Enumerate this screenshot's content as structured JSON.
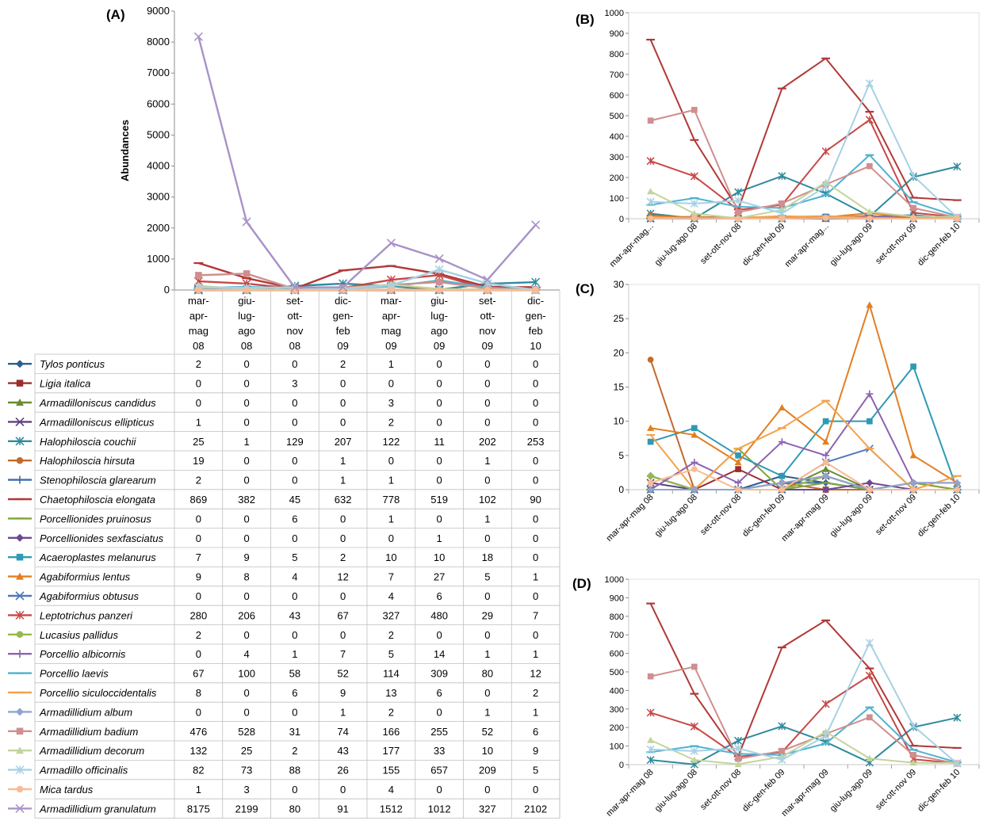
{
  "colors": [
    "#2E5E8E",
    "#9B2D2D",
    "#6A8C2E",
    "#5E3F7F",
    "#2F8B9C",
    "#C4692D",
    "#3C6BA8",
    "#B23838",
    "#7FA43C",
    "#6E4796",
    "#2F9AB4",
    "#E27F22",
    "#4F79B8",
    "#C84848",
    "#97B94A",
    "#8C63B0",
    "#4FB2CF",
    "#F5A24A",
    "#8FA4CF",
    "#D08E8E",
    "#C3D49C",
    "#A7D1E3",
    "#F9BB93",
    "#A892C7"
  ],
  "markers": [
    "diamond",
    "square",
    "triangle",
    "x",
    "asterisk",
    "circle",
    "plus",
    "dash",
    "dash",
    "diamond",
    "square",
    "triangle",
    "x",
    "asterisk",
    "circle",
    "plus",
    "dash",
    "dash",
    "diamond",
    "square",
    "triangle",
    "asterisk",
    "circle",
    "x"
  ],
  "chart_data": [
    {
      "panel": "(A)",
      "type": "line",
      "ylabel": "Abundances",
      "ylim": [
        0,
        9000
      ],
      "yticks": [
        "0",
        "1000",
        "2000",
        "3000",
        "4000",
        "5000",
        "6000",
        "7000",
        "8000",
        "9000"
      ],
      "categories": [
        [
          "mar-",
          "apr-",
          "mag",
          "08"
        ],
        [
          "giu-",
          "lug-",
          "ago",
          "08"
        ],
        [
          "set-",
          "ott-",
          "nov",
          "08"
        ],
        [
          "dic-",
          "gen-",
          "feb",
          "09"
        ],
        [
          "mar-",
          "apr-",
          "mag",
          "09"
        ],
        [
          "giu-",
          "lug-",
          "ago",
          "09"
        ],
        [
          "set-",
          "ott-",
          "nov",
          "09"
        ],
        [
          "dic-",
          "gen-",
          "feb",
          "10"
        ]
      ],
      "legend_placement": "data table below",
      "series": [
        {
          "name": "Tylos ponticus",
          "values": [
            2,
            0,
            0,
            2,
            1,
            0,
            0,
            0
          ]
        },
        {
          "name": "Ligia italica",
          "values": [
            0,
            0,
            3,
            0,
            0,
            0,
            0,
            0
          ]
        },
        {
          "name": "Armadilloniscus candidus",
          "values": [
            0,
            0,
            0,
            0,
            3,
            0,
            0,
            0
          ]
        },
        {
          "name": "Armadilloniscus ellipticus",
          "values": [
            1,
            0,
            0,
            0,
            2,
            0,
            0,
            0
          ]
        },
        {
          "name": "Halophiloscia couchii",
          "values": [
            25,
            1,
            129,
            207,
            122,
            11,
            202,
            253
          ]
        },
        {
          "name": "Halophiloscia hirsuta",
          "values": [
            19,
            0,
            0,
            1,
            0,
            0,
            1,
            0
          ]
        },
        {
          "name": "Stenophiloscia glarearum",
          "values": [
            2,
            0,
            0,
            1,
            1,
            0,
            0,
            0
          ]
        },
        {
          "name": "Chaetophiloscia elongata",
          "values": [
            869,
            382,
            45,
            632,
            778,
            519,
            102,
            90
          ]
        },
        {
          "name": "Porcellionides pruinosus",
          "values": [
            0,
            0,
            6,
            0,
            1,
            0,
            1,
            0
          ]
        },
        {
          "name": "Porcellionides sexfasciatus",
          "values": [
            0,
            0,
            0,
            0,
            0,
            1,
            0,
            0
          ]
        },
        {
          "name": "Acaeroplastes melanurus",
          "values": [
            7,
            9,
            5,
            2,
            10,
            10,
            18,
            0
          ]
        },
        {
          "name": "Agabiformius lentus",
          "values": [
            9,
            8,
            4,
            12,
            7,
            27,
            5,
            1
          ]
        },
        {
          "name": "Agabiformius obtusus",
          "values": [
            0,
            0,
            0,
            0,
            4,
            6,
            0,
            0
          ]
        },
        {
          "name": "Leptotrichus panzeri",
          "values": [
            280,
            206,
            43,
            67,
            327,
            480,
            29,
            7
          ]
        },
        {
          "name": "Lucasius pallidus",
          "values": [
            2,
            0,
            0,
            0,
            2,
            0,
            0,
            0
          ]
        },
        {
          "name": "Porcellio albicornis",
          "values": [
            0,
            4,
            1,
            7,
            5,
            14,
            1,
            1
          ]
        },
        {
          "name": "Porcellio laevis",
          "values": [
            67,
            100,
            58,
            52,
            114,
            309,
            80,
            12
          ]
        },
        {
          "name": "Porcellio siculoccidentalis",
          "values": [
            8,
            0,
            6,
            9,
            13,
            6,
            0,
            2
          ]
        },
        {
          "name": "Armadillidium album",
          "values": [
            0,
            0,
            0,
            1,
            2,
            0,
            1,
            1
          ]
        },
        {
          "name": "Armadillidium badium",
          "values": [
            476,
            528,
            31,
            74,
            166,
            255,
            52,
            6
          ]
        },
        {
          "name": "Armadillidium decorum",
          "values": [
            132,
            25,
            2,
            43,
            177,
            33,
            10,
            9
          ]
        },
        {
          "name": "Armadillo officinalis",
          "values": [
            82,
            73,
            88,
            26,
            155,
            657,
            209,
            5
          ]
        },
        {
          "name": "Mica tardus",
          "values": [
            1,
            3,
            0,
            0,
            4,
            0,
            0,
            0
          ]
        },
        {
          "name": "Armadillidium granulatum",
          "values": [
            8175,
            2199,
            80,
            91,
            1512,
            1012,
            327,
            2102
          ]
        }
      ]
    },
    {
      "panel": "(B)",
      "type": "line",
      "ylim": [
        0,
        1000
      ],
      "yticks": [
        "0",
        "100",
        "200",
        "300",
        "400",
        "500",
        "600",
        "700",
        "800",
        "900",
        "1000"
      ],
      "categories": [
        "mar-apr-mag...",
        "giu-lug-ago 08",
        "set-ott-nov 08",
        "dic-gen-feb 09",
        "mar-apr-mag...",
        "giu-lug-ago 09",
        "set-ott-nov 09",
        "dic-gen-feb 10"
      ],
      "series_indices": [
        0,
        1,
        2,
        3,
        4,
        5,
        6,
        7,
        8,
        9,
        10,
        11,
        12,
        13,
        14,
        15,
        16,
        17,
        18,
        19,
        20,
        21,
        22
      ]
    },
    {
      "panel": "(C)",
      "type": "line",
      "ylim": [
        0,
        30
      ],
      "yticks": [
        "0",
        "5",
        "10",
        "15",
        "20",
        "25",
        "30"
      ],
      "categories": [
        "mar-apr-mag 08",
        "giu-lug-ago 08",
        "set-ott-nov 08",
        "dic-gen-feb 09",
        "mar-apr-mag 09",
        "giu-lug-ago 09",
        "set-ott-nov 09",
        "dic-gen-feb 10"
      ],
      "series_indices": [
        0,
        1,
        2,
        3,
        5,
        6,
        8,
        9,
        10,
        11,
        12,
        14,
        15,
        17,
        18,
        22
      ]
    },
    {
      "panel": "(D)",
      "type": "line",
      "ylim": [
        0,
        1000
      ],
      "yticks": [
        "0",
        "100",
        "200",
        "300",
        "400",
        "500",
        "600",
        "700",
        "800",
        "900",
        "1000"
      ],
      "categories": [
        "mar-apr-mag 08",
        "giu-lug-ago 08",
        "set-ott-nov 08",
        "dic-gen-feb 09",
        "mar-apr-mag 09",
        "giu-lug-ago 09",
        "set-ott-nov 09",
        "dic-gen-feb 10"
      ],
      "series_indices": [
        4,
        7,
        13,
        16,
        19,
        20,
        21
      ]
    }
  ]
}
